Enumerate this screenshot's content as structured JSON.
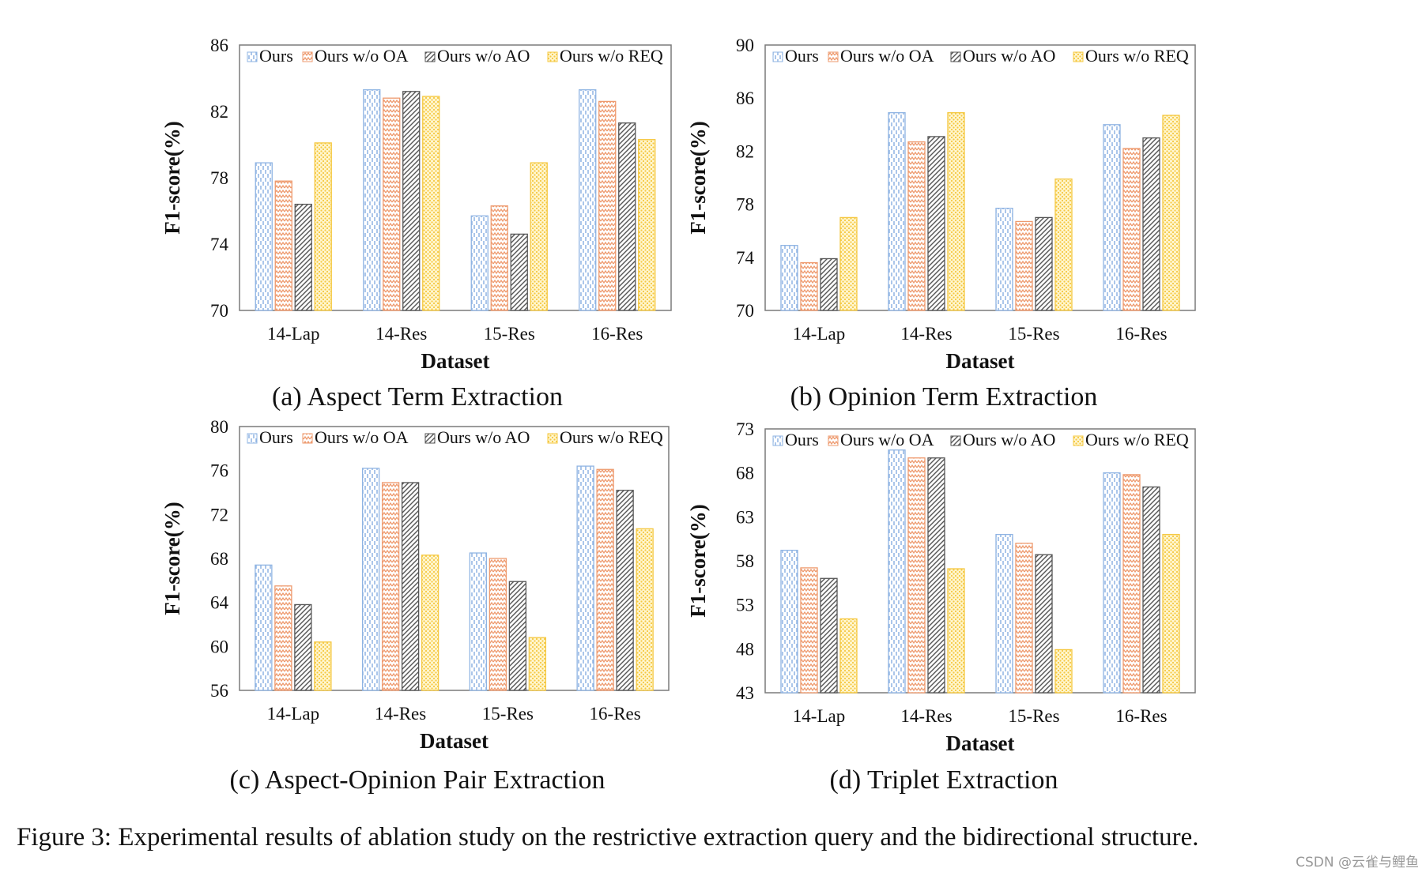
{
  "figure_caption": "Figure 3: Experimental results of ablation study on the restrictive extraction query and the bidirectional structure.",
  "watermark": "CSDN @云雀与鲤鱼",
  "series_colors": {
    "Ours": "#8fb4e3",
    "Ours w/o OA": "#ee9a6e",
    "Ours w/o AO": "#555555",
    "Ours w/o REQ": "#f5c842"
  },
  "chart_data": [
    {
      "type": "bar",
      "caption": "(a) Aspect Term Extraction",
      "xlabel": "Dataset",
      "ylabel": "F1-score(%)",
      "ylim": [
        70,
        86
      ],
      "yticks": [
        70,
        74,
        78,
        82,
        86
      ],
      "legend": "top",
      "grid": false,
      "categories": [
        "14-Lap",
        "14-Res",
        "15-Res",
        "16-Res"
      ],
      "series": [
        {
          "name": "Ours",
          "values": [
            78.9,
            83.3,
            75.7,
            83.3
          ]
        },
        {
          "name": "Ours w/o OA",
          "values": [
            77.8,
            82.8,
            76.3,
            82.6
          ]
        },
        {
          "name": "Ours w/o AO",
          "values": [
            76.4,
            83.2,
            74.6,
            81.3
          ]
        },
        {
          "name": "Ours w/o REQ",
          "values": [
            80.1,
            82.9,
            78.9,
            80.3
          ]
        }
      ]
    },
    {
      "type": "bar",
      "caption": "(b) Opinion Term Extraction",
      "xlabel": "Dataset",
      "ylabel": "F1-score(%)",
      "ylim": [
        70,
        90
      ],
      "yticks": [
        70,
        74,
        78,
        82,
        86,
        90
      ],
      "legend": "top",
      "grid": false,
      "categories": [
        "14-Lap",
        "14-Res",
        "15-Res",
        "16-Res"
      ],
      "series": [
        {
          "name": "Ours",
          "values": [
            74.9,
            84.9,
            77.7,
            84.0
          ]
        },
        {
          "name": "Ours w/o OA",
          "values": [
            73.6,
            82.7,
            76.7,
            82.2
          ]
        },
        {
          "name": "Ours w/o AO",
          "values": [
            73.9,
            83.1,
            77.0,
            83.0
          ]
        },
        {
          "name": "Ours w/o REQ",
          "values": [
            77.0,
            84.9,
            79.9,
            84.7
          ]
        }
      ]
    },
    {
      "type": "bar",
      "caption": "(c) Aspect-Opinion Pair Extraction",
      "xlabel": "Dataset",
      "ylabel": "F1-score(%)",
      "ylim": [
        56,
        80
      ],
      "yticks": [
        56,
        60,
        64,
        68,
        72,
        76,
        80
      ],
      "legend": "top",
      "grid": false,
      "categories": [
        "14-Lap",
        "14-Res",
        "15-Res",
        "16-Res"
      ],
      "series": [
        {
          "name": "Ours",
          "values": [
            67.4,
            76.2,
            68.5,
            76.4
          ]
        },
        {
          "name": "Ours w/o OA",
          "values": [
            65.5,
            74.9,
            68.0,
            76.1
          ]
        },
        {
          "name": "Ours w/o AO",
          "values": [
            63.8,
            74.9,
            65.9,
            74.2
          ]
        },
        {
          "name": "Ours w/o REQ",
          "values": [
            60.4,
            68.3,
            60.8,
            70.7
          ]
        }
      ]
    },
    {
      "type": "bar",
      "caption": "(d) Triplet Extraction",
      "xlabel": "Dataset",
      "ylabel": "F1-score(%)",
      "ylim": [
        43,
        73
      ],
      "yticks": [
        43,
        48,
        53,
        58,
        63,
        68,
        73
      ],
      "legend": "top",
      "grid": false,
      "categories": [
        "14-Lap",
        "14-Res",
        "15-Res",
        "16-Res"
      ],
      "series": [
        {
          "name": "Ours",
          "values": [
            59.2,
            70.6,
            61.0,
            68.0
          ]
        },
        {
          "name": "Ours w/o OA",
          "values": [
            57.2,
            69.7,
            60.0,
            67.8
          ]
        },
        {
          "name": "Ours w/o AO",
          "values": [
            56.0,
            69.7,
            58.7,
            66.4
          ]
        },
        {
          "name": "Ours w/o REQ",
          "values": [
            51.4,
            57.1,
            47.9,
            61.0
          ]
        }
      ]
    }
  ]
}
